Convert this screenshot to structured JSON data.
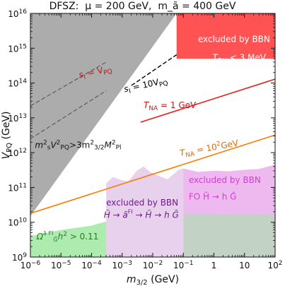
{
  "title": "DFSZ:  μ = 200 GeV,  m_ã = 400 GeV",
  "chart_data": {
    "type": "line",
    "x_log": true,
    "y_log": true,
    "xlim": [
      1e-06,
      100
    ],
    "ylim": [
      1000000000,
      1e+16
    ],
    "x_ticks": [
      {
        "v": 1e-06,
        "b": "10",
        "e": "−6"
      },
      {
        "v": 1e-05,
        "b": "10",
        "e": "−5"
      },
      {
        "v": 0.0001,
        "b": "10",
        "e": "−4"
      },
      {
        "v": 0.001,
        "b": "10",
        "e": "−3"
      },
      {
        "v": 0.01,
        "b": "10",
        "e": "−2"
      },
      {
        "v": 0.1,
        "b": "10",
        "e": "−1"
      },
      {
        "v": 1,
        "b": "1",
        "e": ""
      },
      {
        "v": 10,
        "b": "10",
        "e": ""
      },
      {
        "v": 100,
        "b": "10",
        "e": "2"
      }
    ],
    "y_ticks": [
      {
        "v": 1000000000,
        "b": "10",
        "e": "9"
      },
      {
        "v": 10000000000,
        "b": "10",
        "e": "10"
      },
      {
        "v": 100000000000,
        "b": "10",
        "e": "11"
      },
      {
        "v": 1000000000000,
        "b": "10",
        "e": "12"
      },
      {
        "v": 10000000000000,
        "b": "10",
        "e": "13"
      },
      {
        "v": 100000000000000,
        "b": "10",
        "e": "14"
      },
      {
        "v": 1000000000000000.0,
        "b": "10",
        "e": "15"
      },
      {
        "v": 1e+16,
        "b": "10",
        "e": "16"
      }
    ],
    "xlabel": {
      "main": "m",
      "sub": "3/2",
      "tail": " (GeV)"
    },
    "ylabel": {
      "main": "V",
      "sub": "PQ",
      "tail": " (GeV)"
    },
    "regions": [
      {
        "name": "gray-excluded-region",
        "color": "#a8a8a8",
        "opacity": 0.95,
        "points": [
          [
            1e-06,
            15000000000.0
          ],
          [
            0.06,
            1e+16
          ],
          [
            1e-06,
            1e+16
          ]
        ]
      },
      {
        "name": "red-bbn-region",
        "color": "#ff4a4a",
        "opacity": 0.95,
        "points": [
          [
            0.06,
            1e+16
          ],
          [
            100,
            1e+16
          ],
          [
            100,
            500000000000000.0
          ],
          [
            0.06,
            500000000000000.0
          ]
        ]
      },
      {
        "name": "green-omega-region",
        "color": "#9fe7a0",
        "opacity": 0.85,
        "points": [
          [
            1e-06,
            4000000000.0
          ],
          [
            1e-05,
            6000000000.0
          ],
          [
            0.0001,
            8000000000.0
          ],
          [
            0.0003,
            10500000000.0
          ],
          [
            0.0003,
            1000000000.0
          ],
          [
            1e-06,
            1000000000.0
          ]
        ]
      },
      {
        "name": "violet-bbn-region-1",
        "color": "#c58bd1",
        "opacity": 0.4,
        "points": [
          [
            0.0003,
            10500000000.0
          ],
          [
            0.0003,
            130000000000.0
          ],
          [
            0.0005,
            200000000000.0
          ],
          [
            0.0008,
            170000000000.0
          ],
          [
            0.0015,
            150000000000.0
          ],
          [
            0.002,
            190000000000.0
          ],
          [
            0.003,
            300000000000.0
          ],
          [
            0.005,
            400000000000.0
          ],
          [
            0.008,
            280000000000.0
          ],
          [
            0.015,
            220000000000.0
          ],
          [
            0.03,
            170000000000.0
          ],
          [
            0.07,
            320000000000.0
          ],
          [
            0.1,
            350000000000.0
          ],
          [
            0.1,
            1000000000.0
          ],
          [
            0.0003,
            1000000000.0
          ]
        ]
      },
      {
        "name": "violet-bbn-region-2",
        "color": "#d24fd6",
        "opacity": 0.4,
        "points": [
          [
            0.1,
            350000000000.0
          ],
          [
            0.3,
            280000000000.0
          ],
          [
            1,
            300000000000.0
          ],
          [
            3,
            290000000000.0
          ],
          [
            10,
            320000000000.0
          ],
          [
            30,
            340000000000.0
          ],
          [
            60,
            400000000000.0
          ],
          [
            100,
            450000000000.0
          ],
          [
            100,
            1000000000.0
          ],
          [
            0.1,
            1000000000.0
          ]
        ]
      },
      {
        "name": "green-region-right",
        "color": "#9fe7a0",
        "opacity": 0.55,
        "points": [
          [
            0.1,
            1000000000.0
          ],
          [
            100,
            1000000000.0
          ],
          [
            100,
            14000000000.0
          ],
          [
            60,
            17000000000.0
          ],
          [
            10,
            17000000000.0
          ],
          [
            1,
            17500000000.0
          ],
          [
            0.1,
            17500000000.0
          ]
        ]
      }
    ],
    "series": [
      {
        "color": "#e61f1f",
        "width": 1.6,
        "dash": "",
        "points": [
          [
            0.004,
            7500000000000.0
          ],
          [
            100,
            130000000000000.0
          ]
        ]
      },
      {
        "color": "#ff7a00",
        "width": 1.6,
        "dash": "",
        "points": [
          [
            1e-06,
            18000000000.0
          ],
          [
            100,
            3200000000000.0
          ]
        ]
      },
      {
        "color": "#000000",
        "width": 1.4,
        "dash": "6 3",
        "points": [
          [
            0.002,
            85000000000000.0
          ],
          [
            0.06,
            650000000000000.0
          ]
        ]
      },
      {
        "color": "#555555",
        "width": 1.1,
        "dash": "6 3",
        "points": [
          [
            1e-06,
            22000000000000.0
          ],
          [
            0.0003,
            400000000000000.0
          ]
        ]
      },
      {
        "color": "#555555",
        "width": 1.1,
        "dash": "6 3",
        "points": [
          [
            1e-06,
            2500000000000.0
          ],
          [
            0.0003,
            60000000000000.0
          ]
        ]
      }
    ],
    "annotations": {
      "bbn_top": "excluded by BBN",
      "trh": {
        "a": "T",
        "a_sub": "RH",
        "b": " < 3 MeV"
      },
      "si_vpq": {
        "a": "s",
        "a_sub": "I",
        "b": " = V",
        "b_sub": "PQ"
      },
      "si_10vpq": {
        "a": "s",
        "a_sub": "I",
        "b": " = 10V",
        "b_sub": "PQ"
      },
      "tna_1": {
        "a": "T",
        "a_sub": "NA",
        "b": " = 1 GeV"
      },
      "tna_100": {
        "a": "T",
        "a_sub": "NA",
        "b": " = 10",
        "b_sup": "2",
        "c": "GeV"
      },
      "bound": {
        "a": "m",
        "a_sub": "s",
        "a_sup": "2",
        "b": "V",
        "b_sub": "PQ",
        "b_sup": "2",
        "c": ">3m",
        "c_sub": "3/2",
        "c_sup": "2",
        "d": "M",
        "d_sub": "Pl",
        "d_sup": "2"
      },
      "bbn_fi": "excluded by BBN",
      "fi_chain": {
        "a": "H̃ → ã",
        "a_sup": "FI",
        "b": " → H̃ → h G̃"
      },
      "bbn_fo": "excluded by BBN",
      "fo_chain": "FO  H̃ → h G̃",
      "omega": {
        "a": "Ω",
        "a_sub": "G̃",
        "a_sup": "ã FI",
        "b": "h",
        "b_sup": "2",
        "c": " > 0.11"
      }
    }
  }
}
